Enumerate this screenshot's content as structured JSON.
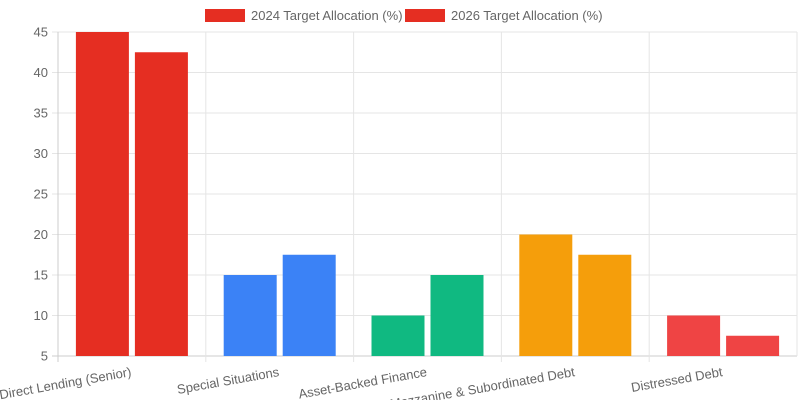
{
  "chart_data": {
    "type": "bar",
    "title": "",
    "xlabel": "",
    "ylabel": "",
    "categories": [
      "Direct Lending (Senior)",
      "Special Situations",
      "Asset-Backed Finance",
      "Mezzanine & Subordinated Debt",
      "Distressed Debt"
    ],
    "series": [
      {
        "name": "2024 Target Allocation (%)",
        "values": [
          45,
          15,
          10,
          20,
          10
        ]
      },
      {
        "name": "2026 Target Allocation (%)",
        "values": [
          42.5,
          17.5,
          15,
          17.5,
          7.5
        ]
      }
    ],
    "category_colors": [
      "#e52e22",
      "#3b82f6",
      "#10b981",
      "#f59e0b",
      "#ef4444"
    ],
    "legend_colors": [
      "#e52e22",
      "#e52e22"
    ],
    "ylim": [
      5,
      45
    ],
    "yticks": [
      5,
      10,
      15,
      20,
      25,
      30,
      35,
      40,
      45
    ],
    "grid": true,
    "legend_position": "top"
  }
}
